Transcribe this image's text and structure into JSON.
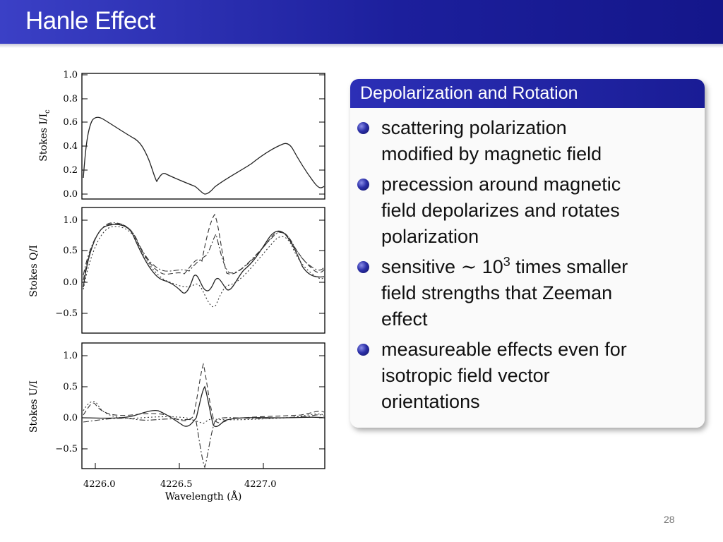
{
  "slide": {
    "title": "Hanle Effect",
    "page_number": "28"
  },
  "block": {
    "heading": "Depolarization and Rotation",
    "bullets": [
      {
        "lines": [
          "scattering polarization",
          "modified by magnetic field"
        ]
      },
      {
        "lines": [
          "precession around magnetic",
          "field depolarizes and rotates",
          "polarization"
        ]
      },
      {
        "pre": "sensitive ",
        "sim": "∼",
        "mid": " 10",
        "sup": "3",
        "post": " times smaller",
        "lines": [
          "field strengths that Zeeman",
          "effect"
        ]
      },
      {
        "lines": [
          "measureable effects even for",
          "isotropic field vector",
          "orientations"
        ]
      }
    ]
  },
  "figure": {
    "panels": [
      {
        "ylabel": "Stokes I/I",
        "ylabel_sub": "c",
        "yticks": [
          "1.0",
          "0.8",
          "0.6",
          "0.4",
          "0.2",
          "0.0"
        ]
      },
      {
        "ylabel": "Stokes Q/I",
        "yticks": [
          "1.0",
          "0.5",
          "0.0",
          "−0.5"
        ]
      },
      {
        "ylabel": "Stokes U/I",
        "yticks": [
          "1.0",
          "0.5",
          "0.0",
          "−0.5"
        ]
      }
    ],
    "xticks": [
      "4226.0",
      "4226.5",
      "4227.0"
    ],
    "xlabel": "Wavelength (Å)"
  }
}
